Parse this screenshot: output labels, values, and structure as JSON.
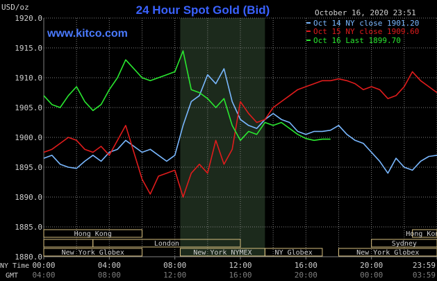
{
  "header": {
    "unit": "USD/oz",
    "title": "24 Hour Spot Gold (Bid)",
    "date": "October 16, 2020 23:51",
    "website": "www.kitco.com"
  },
  "colors": {
    "background": "#000000",
    "grid": "#808080",
    "text": "#d0d0d0",
    "title": "#3a62ff",
    "website": "#4a7aff",
    "night_zone": "#1c2a1c",
    "session_box": "#d8c080"
  },
  "legend": [
    {
      "label": "Oct 14 NY close 1901.20",
      "color": "#7ab8ff"
    },
    {
      "label": "Oct 15 NY close 1909.60",
      "color": "#e01c1c"
    },
    {
      "label": "Oct 16 Last 1899.70",
      "color": "#2ae830"
    }
  ],
  "sessions": {
    "row1": [
      {
        "label": "Hong Kong",
        "start": 0,
        "end": 6
      },
      {
        "label": "Hong Kong",
        "start": 22.5,
        "end": 24
      }
    ],
    "row2": [
      {
        "label": "London",
        "start": 3,
        "end": 12,
        "lead_from": 0
      },
      {
        "label": "Sydney",
        "start": 20,
        "end": 24,
        "lead_from": 20
      }
    ],
    "row3": [
      {
        "label": "New York Globex",
        "start": 0,
        "end": 6
      },
      {
        "label": "New York NYMEX",
        "start": 8.33,
        "end": 13.5
      },
      {
        "label": "NY Globex",
        "start": 13.5,
        "end": 17
      },
      {
        "label": "New York Globex",
        "start": 18,
        "end": 24
      }
    ]
  },
  "time_axis": {
    "ny_label": "NY Time",
    "gmt_label": "GMT",
    "ny_ticks": [
      "00:00",
      "04:00",
      "08:00",
      "12:00",
      "16:00",
      "20:00",
      "23:59"
    ],
    "gmt_ticks": [
      "04:00",
      "08:00",
      "12:00",
      "16:00",
      "20:00",
      "00:00",
      "03:59"
    ]
  },
  "chart_data": {
    "type": "line",
    "title": "24 Hour Spot Gold (Bid)",
    "ylabel": "USD/oz",
    "xlabel": "NY Time",
    "xlim": [
      0,
      24
    ],
    "ylim": [
      1880,
      1920
    ],
    "y_ticks": [
      "1920.0",
      "1915.0",
      "1910.0",
      "1905.0",
      "1900.0",
      "1895.0",
      "1890.0",
      "1885.0",
      "1880.0"
    ],
    "night_zone": [
      8.33,
      13.5
    ],
    "grid": true,
    "series": [
      {
        "name": "Oct 14 NY close 1901.20",
        "color": "#7ab8ff",
        "x": [
          0,
          0.5,
          1,
          1.5,
          2,
          2.5,
          3,
          3.5,
          4,
          4.5,
          5,
          5.5,
          6,
          6.5,
          7,
          7.5,
          8,
          8.5,
          9,
          9.5,
          10,
          10.5,
          11,
          11.5,
          12,
          12.5,
          13,
          13.5,
          14,
          14.5,
          15,
          15.5,
          16,
          16.5,
          17,
          17.5,
          18,
          18.5,
          19,
          19.5,
          20,
          20.5,
          21,
          21.5,
          22,
          22.5,
          23,
          23.5,
          24
        ],
        "y": [
          1896.5,
          1897.0,
          1895.5,
          1895.0,
          1894.8,
          1896.0,
          1897.0,
          1896.0,
          1897.5,
          1898.0,
          1899.5,
          1898.5,
          1897.5,
          1898.0,
          1897.0,
          1896.0,
          1897.0,
          1902.0,
          1906.0,
          1907.0,
          1910.5,
          1909.0,
          1911.5,
          1906.0,
          1903.0,
          1902.0,
          1901.5,
          1903.0,
          1904.0,
          1903.0,
          1902.5,
          1901.0,
          1900.5,
          1901.0,
          1901.0,
          1901.2,
          1902.0,
          1900.5,
          1899.5,
          1899.0,
          1897.5,
          1896.0,
          1894.0,
          1896.5,
          1895.0,
          1894.5,
          1896.0,
          1896.8,
          1897.0
        ]
      },
      {
        "name": "Oct 15 NY close 1909.60",
        "color": "#e01c1c",
        "x": [
          0,
          0.5,
          1,
          1.5,
          2,
          2.5,
          3,
          3.5,
          4,
          4.5,
          5,
          5.5,
          6,
          6.5,
          7,
          7.5,
          8,
          8.5,
          9,
          9.5,
          10,
          10.5,
          11,
          11.5,
          12,
          12.5,
          13,
          13.5,
          14,
          14.5,
          15,
          15.5,
          16,
          16.5,
          17,
          17.5,
          18,
          18.5,
          19,
          19.5,
          20,
          20.5,
          21,
          21.5,
          22,
          22.5,
          23,
          23.5,
          24
        ],
        "y": [
          1897.5,
          1898.0,
          1899.0,
          1900.0,
          1899.5,
          1898.0,
          1897.5,
          1898.5,
          1897.0,
          1899.5,
          1902.0,
          1897.5,
          1893.0,
          1890.5,
          1893.5,
          1894.0,
          1894.5,
          1890.0,
          1894.0,
          1895.5,
          1894.0,
          1899.5,
          1895.5,
          1898.0,
          1906.0,
          1904.0,
          1902.5,
          1903.0,
          1905.0,
          1906.0,
          1907.0,
          1908.0,
          1908.5,
          1909.0,
          1909.5,
          1909.5,
          1909.8,
          1909.5,
          1909.0,
          1908.0,
          1908.5,
          1908.0,
          1906.5,
          1907.0,
          1908.5,
          1911.0,
          1909.5,
          1908.5,
          1907.5
        ]
      },
      {
        "name": "Oct 16 Last 1899.70",
        "color": "#2ae830",
        "x": [
          0,
          0.5,
          1,
          1.5,
          2,
          2.5,
          3,
          3.5,
          4,
          4.5,
          5,
          5.5,
          6,
          6.5,
          7,
          7.5,
          8,
          8.5,
          9,
          9.5,
          10,
          10.5,
          11,
          11.5,
          12,
          12.5,
          13,
          13.5,
          14,
          14.5,
          15,
          15.5,
          16,
          16.5,
          17,
          17.5
        ],
        "y": [
          1907.0,
          1905.5,
          1905.0,
          1907.0,
          1908.5,
          1906.0,
          1904.5,
          1905.5,
          1908.0,
          1910.0,
          1913.0,
          1911.5,
          1910.0,
          1909.5,
          1910.0,
          1910.5,
          1911.0,
          1914.5,
          1908.0,
          1907.5,
          1906.5,
          1905.0,
          1906.5,
          1902.0,
          1899.5,
          1901.0,
          1900.5,
          1902.5,
          1902.0,
          1902.5,
          1901.5,
          1900.5,
          1899.8,
          1899.5,
          1899.7,
          1899.7
        ]
      }
    ]
  }
}
